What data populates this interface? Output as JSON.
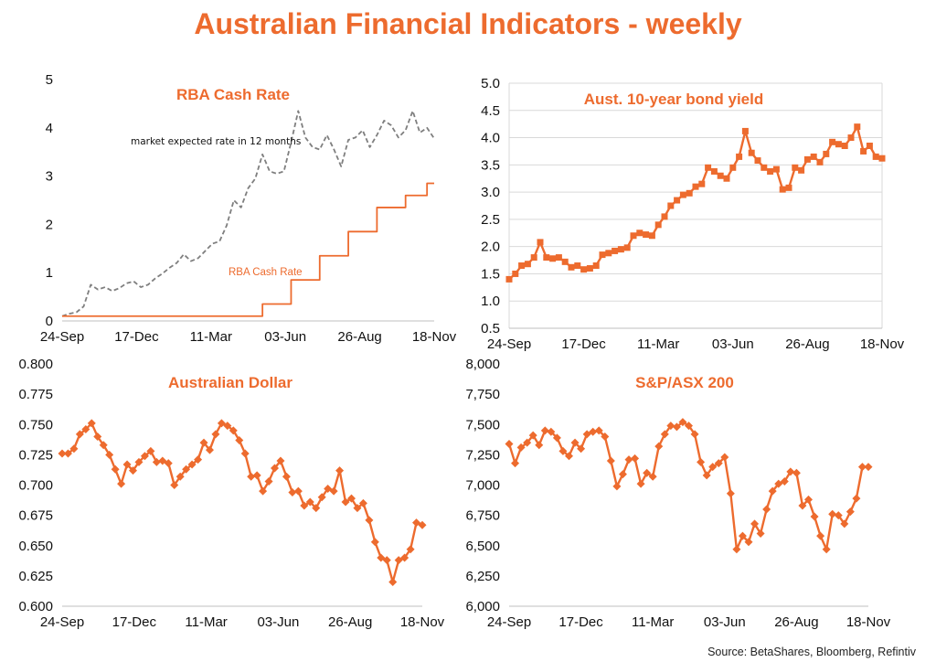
{
  "title": "Australian Financial Indicators - weekly",
  "source": "Source: BetaShares, Bloomberg, Refintiv",
  "colors": {
    "accent": "#ed6b2e",
    "dashed": "#7f7f7f",
    "grid": "#d9d9d9"
  },
  "chart_data": [
    {
      "id": "rba",
      "type": "line",
      "title": "RBA Cash Rate",
      "categories_label_ticks": [
        "24-Sep",
        "17-Dec",
        "11-Mar",
        "03-Jun",
        "26-Aug",
        "18-Nov"
      ],
      "ylim": [
        0,
        5
      ],
      "yticks": [
        0,
        1,
        2,
        3,
        4,
        5
      ],
      "ytick_labels": [
        "0",
        "1",
        "2",
        "3",
        "4",
        "5"
      ],
      "grid": false,
      "annotations": [
        "market expected rate in 12 months",
        "RBA Cash Rate"
      ],
      "series": [
        {
          "name": "market expected rate in 12 months",
          "style": "dashed",
          "values": [
            0.1,
            0.15,
            0.18,
            0.3,
            0.75,
            0.65,
            0.7,
            0.62,
            0.68,
            0.78,
            0.82,
            0.7,
            0.75,
            0.88,
            0.98,
            1.1,
            1.2,
            1.38,
            1.24,
            1.3,
            1.45,
            1.6,
            1.65,
            1.98,
            2.5,
            2.35,
            2.75,
            2.95,
            3.45,
            3.1,
            3.05,
            3.1,
            3.7,
            4.35,
            3.8,
            3.6,
            3.55,
            3.85,
            3.55,
            3.2,
            3.75,
            3.8,
            3.95,
            3.6,
            3.85,
            4.15,
            4.05,
            3.8,
            3.95,
            4.35,
            3.9,
            4.0,
            3.78
          ]
        },
        {
          "name": "RBA Cash Rate",
          "style": "solid",
          "step": true,
          "values": [
            0.1,
            0.1,
            0.1,
            0.1,
            0.1,
            0.1,
            0.1,
            0.1,
            0.1,
            0.1,
            0.1,
            0.1,
            0.1,
            0.1,
            0.1,
            0.1,
            0.1,
            0.1,
            0.1,
            0.1,
            0.1,
            0.1,
            0.1,
            0.1,
            0.1,
            0.1,
            0.1,
            0.1,
            0.35,
            0.35,
            0.35,
            0.35,
            0.85,
            0.85,
            0.85,
            0.85,
            1.35,
            1.35,
            1.35,
            1.35,
            1.85,
            1.85,
            1.85,
            1.85,
            2.35,
            2.35,
            2.35,
            2.35,
            2.6,
            2.6,
            2.6,
            2.85,
            2.85
          ]
        }
      ]
    },
    {
      "id": "bond",
      "type": "line",
      "title": "Aust. 10-year bond yield",
      "categories_label_ticks": [
        "24-Sep",
        "17-Dec",
        "11-Mar",
        "03-Jun",
        "26-Aug",
        "18-Nov"
      ],
      "ylim": [
        0.5,
        5.0
      ],
      "yticks": [
        0.5,
        1.0,
        1.5,
        2.0,
        2.5,
        3.0,
        3.5,
        4.0,
        4.5,
        5.0
      ],
      "ytick_labels": [
        "0.5",
        "1.0",
        "1.5",
        "2.0",
        "2.5",
        "3.0",
        "3.5",
        "4.0",
        "4.5",
        "5.0"
      ],
      "grid": true,
      "marker": "square",
      "series": [
        {
          "values": [
            1.4,
            1.5,
            1.65,
            1.68,
            1.8,
            2.08,
            1.8,
            1.78,
            1.8,
            1.72,
            1.62,
            1.65,
            1.58,
            1.6,
            1.65,
            1.85,
            1.88,
            1.92,
            1.95,
            1.98,
            2.2,
            2.25,
            2.22,
            2.2,
            2.4,
            2.55,
            2.75,
            2.85,
            2.95,
            2.98,
            3.1,
            3.15,
            3.45,
            3.38,
            3.3,
            3.25,
            3.45,
            3.65,
            4.12,
            3.72,
            3.58,
            3.45,
            3.38,
            3.42,
            3.05,
            3.08,
            3.45,
            3.4,
            3.6,
            3.65,
            3.55,
            3.7,
            3.92,
            3.88,
            3.85,
            4.0,
            4.2,
            3.75,
            3.85,
            3.65,
            3.62
          ]
        }
      ]
    },
    {
      "id": "aud",
      "type": "line",
      "title": "Australian Dollar",
      "categories_label_ticks": [
        "24-Sep",
        "17-Dec",
        "11-Mar",
        "03-Jun",
        "26-Aug",
        "18-Nov"
      ],
      "ylim": [
        0.6,
        0.8
      ],
      "yticks": [
        0.6,
        0.625,
        0.65,
        0.675,
        0.7,
        0.725,
        0.75,
        0.775,
        0.8
      ],
      "ytick_labels": [
        "0.600",
        "0.625",
        "0.650",
        "0.675",
        "0.700",
        "0.725",
        "0.750",
        "0.775",
        "0.800"
      ],
      "grid": false,
      "marker": "diamond",
      "series": [
        {
          "values": [
            0.726,
            0.726,
            0.73,
            0.742,
            0.746,
            0.751,
            0.74,
            0.733,
            0.725,
            0.713,
            0.701,
            0.717,
            0.712,
            0.719,
            0.724,
            0.728,
            0.719,
            0.72,
            0.718,
            0.7,
            0.707,
            0.713,
            0.717,
            0.721,
            0.735,
            0.729,
            0.742,
            0.751,
            0.749,
            0.745,
            0.737,
            0.726,
            0.707,
            0.708,
            0.695,
            0.703,
            0.714,
            0.72,
            0.707,
            0.694,
            0.695,
            0.683,
            0.686,
            0.681,
            0.69,
            0.697,
            0.695,
            0.712,
            0.686,
            0.689,
            0.681,
            0.685,
            0.671,
            0.653,
            0.64,
            0.638,
            0.62,
            0.638,
            0.64,
            0.647,
            0.669,
            0.667
          ]
        }
      ]
    },
    {
      "id": "asx",
      "type": "line",
      "title": "S&P/ASX 200",
      "categories_label_ticks": [
        "24-Sep",
        "17-Dec",
        "11-Mar",
        "03-Jun",
        "26-Aug",
        "18-Nov"
      ],
      "ylim": [
        6000,
        8000
      ],
      "yticks": [
        6000,
        6250,
        6500,
        6750,
        7000,
        7250,
        7500,
        7750,
        8000
      ],
      "ytick_labels": [
        "6,000",
        "6,250",
        "6,500",
        "6,750",
        "7,000",
        "7,250",
        "7,500",
        "7,750",
        "8,000"
      ],
      "grid": false,
      "marker": "diamond",
      "series": [
        {
          "values": [
            7340,
            7180,
            7310,
            7350,
            7410,
            7330,
            7450,
            7440,
            7390,
            7280,
            7240,
            7350,
            7300,
            7420,
            7440,
            7450,
            7400,
            7200,
            6990,
            7090,
            7210,
            7220,
            7010,
            7100,
            7070,
            7320,
            7420,
            7490,
            7480,
            7520,
            7490,
            7420,
            7190,
            7080,
            7150,
            7180,
            7230,
            6930,
            6470,
            6580,
            6530,
            6680,
            6600,
            6800,
            6950,
            7010,
            7030,
            7110,
            7100,
            6830,
            6880,
            6740,
            6580,
            6470,
            6760,
            6750,
            6680,
            6780,
            6890,
            7150,
            7150
          ]
        }
      ]
    }
  ]
}
